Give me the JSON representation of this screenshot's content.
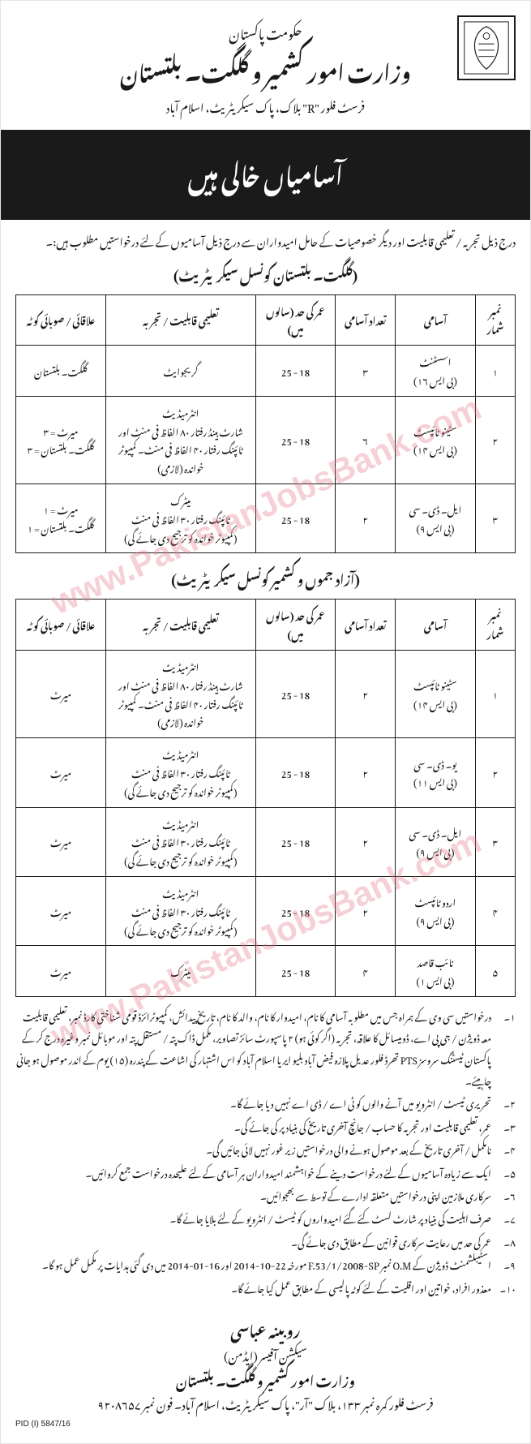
{
  "watermark": "www.PakistanJobsBank.com",
  "header": {
    "gov": "حکومت پاکستان",
    "ministry": "وزارت امور کشمیر و گلگت۔ بلتستان",
    "address": "فرسٹ فلور \"R\" بلاک، پاک سیکریٹریٹ، اسلام آباد"
  },
  "banner": "آسامیاں خالی ہیں",
  "intro": "درج ذیل تجربہ / تعلیمی قابلیت اور دیگر خصوصیات کے حامل امیدواران سے درج ذیل آسامیوں کے لئے درخواستیں مطلوب ہیں:۔",
  "section1_title": "(گلگت۔ بلتستان کونسل سیکریٹریٹ)",
  "section2_title": "(آزاد جموں و کشمیر کونسل سیکریٹریٹ)",
  "columns": [
    "نمبر شمار",
    "آسامی",
    "تعداد آسامی",
    "عمر کی حد (سالوں میں)",
    "تعلیمی قابلیت / تجربہ",
    "علاقائی / صوبائی کوٹہ"
  ],
  "table1": [
    {
      "sr": "۱",
      "post": "اسسٹنٹ\n(بی ایس ۱۶)",
      "num": "۳",
      "age": "18 - 25",
      "qual": "گریجوایٹ",
      "quota": "گلگت۔ بلتستان"
    },
    {
      "sr": "۲",
      "post": "سٹینو ٹائپسٹ\n(بی ایس ۱۴)",
      "num": "۶",
      "age": "18 - 25",
      "qual": "انٹرمیڈیٹ\nشارٹ ہینڈ رفتار ۸۰ الفاظ فی منٹ اور ٹائپنگ رفتار ۴۰ الفاظ فی منٹ۔ کمپیوٹر خواندہ (لازمی)",
      "quota": "میرٹ = ۳\nگلگت۔ بلتستان = ۳"
    },
    {
      "sr": "۳",
      "post": "ایل۔ ڈی۔ سی\n(بی ایس ۹)",
      "num": "۲",
      "age": "18 - 25",
      "qual": "میٹرک\nٹائپنگ رفتار ۳۰ الفاظ فی منٹ\n(کمپیوٹر خواندہ کو ترجیح دی جائے گی)",
      "quota": "میرٹ = ۱\nگلگت۔ بلتستان = ۱"
    }
  ],
  "table2": [
    {
      "sr": "۱",
      "post": "سٹینو ٹائپسٹ\n(بی ایس ۱۴)",
      "num": "۲",
      "age": "18 - 25",
      "qual": "انٹرمیڈیٹ\nشارٹ ہینڈ رفتار ۸۰ الفاظ فی منٹ اور ٹائپنگ رفتار ۴۰ الفاظ فی منٹ۔ کمپیوٹر خواندہ (لازمی)",
      "quota": "میرٹ"
    },
    {
      "sr": "۲",
      "post": "یو۔ ڈی۔ سی\n(بی ایس ۱۱)",
      "num": "۲",
      "age": "18 - 25",
      "qual": "انٹرمیڈیٹ\nٹائپنگ رفتار ۳۰ الفاظ فی منٹ\n(کمپیوٹر خواندہ کو ترجیح دی جائے گی)",
      "quota": "میرٹ"
    },
    {
      "sr": "۳",
      "post": "ایل۔ ڈی۔ سی\n(بی ایس ۹)",
      "num": "۲",
      "age": "18 - 25",
      "qual": "انٹرمیڈیٹ\nٹائپنگ رفتار ۳۰ الفاظ فی منٹ\n(کمپیوٹر خواندہ کو ترجیح دی جائے گی)",
      "quota": "میرٹ"
    },
    {
      "sr": "۴",
      "post": "اردو ٹائپسٹ\n(بی ایس ۹)",
      "num": "۲",
      "age": "18 - 25",
      "qual": "انٹرمیڈیٹ\nٹائپنگ رفتار ۳۰ الفاظ فی منٹ\n(کمپیوٹر خواندہ کو ترجیح دی جائے گی)",
      "quota": "میرٹ"
    },
    {
      "sr": "۵",
      "post": "نائب قاصد\n(بی ایس ۱)",
      "num": "۴",
      "age": "18 - 25",
      "qual": "میٹرک",
      "quota": "میرٹ"
    }
  ],
  "notes": [
    "درخواستیں سی وی کے ہمراہ جس میں مطلوبہ آسامی کا نام، امیدوار کا نام، والد کا نام، تاریخ پیدائش، کمپیوٹرائزڈ قومی شناختی کارڈ نمبر، تعلیمی قابلیت معہ ڈویژن / جی پی اے، ڈومیسائل کا علاقہ، تجربہ (اگر کوئی ہو) ۲ پاسپورٹ سائز تصاویر، مکمل ڈاک پتہ / مستقل پتہ اور موبائل نمبر وغیرہ درج کر کے پاکستان ٹیسٹنگ سروسز PTS تھرڈ فلور عدیل پلازہ فیض آباد بلیو ایریا اسلام آباد کو اس اشتہار کی اشاعت کے پندرہ (۱۵) یوم کے اندر موصول ہو جانی چاہیئے۔",
    "تحریری ٹیسٹ / انٹرویو میں آنے والوں کو ٹی اے / ڈی اے نہیں دیا جائے گا۔",
    "عمر، تعلیمی قابلیت اور تجربہ کا حساب / جانچ آخری تاریخ کی بنیاد پر کی جائے گی۔",
    "نامکمل / آخری تاریخ کے بعد موصول ہونے والی درخواستیں زیر غور نہیں لائی جائیں گی۔",
    "ایک سے زیادہ آسامیوں کے لئے درخواست دینے کے خواہشمند امیدواران ہر آسامی کے لئے علیحدہ درخواست جمع کروائیں۔",
    "سرکاری ملازمین اپنی درخواستیں متعلقہ ادارے کے توسط سے بھجوائیں۔",
    "صرف اہلیت کی بنیاد پر شارٹ لسٹ کئے گئے امیدواروں کو ٹیسٹ / انٹرویو کے لئے بلایا جائے گا۔",
    "عمر کی حد میں رعایت سرکاری قوانین کے مطابق دی جائے گی۔",
    "اسٹیبلشمنٹ ڈویژن کے O.M نمبر F.53/1/2008-SP مورخہ 22-10-2014 اور 16-01-2014 میں دی گئی ہدایات پر مکمل عمل ہو گا۔",
    "معذور افراد، خواتین اور اقلیت کے لئے کوٹہ پالیسی کے مطابق عمل کیا جائے گا۔"
  ],
  "footer": {
    "name": "روبینہ عباسی",
    "title": "سیکشن آفیسر (ایڈمن)",
    "ministry": "وزارت امور کشمیر و گلگت۔ بلتستان",
    "address": "فرسٹ فلور کمرہ نمبر ۱۳۳، بلاک \"آر\"، پاک سیکریٹریٹ، اسلام آباد۔ فون نمبر ۹۲۰۸۶۵۷"
  },
  "ref": "PID (I) 5847/16"
}
